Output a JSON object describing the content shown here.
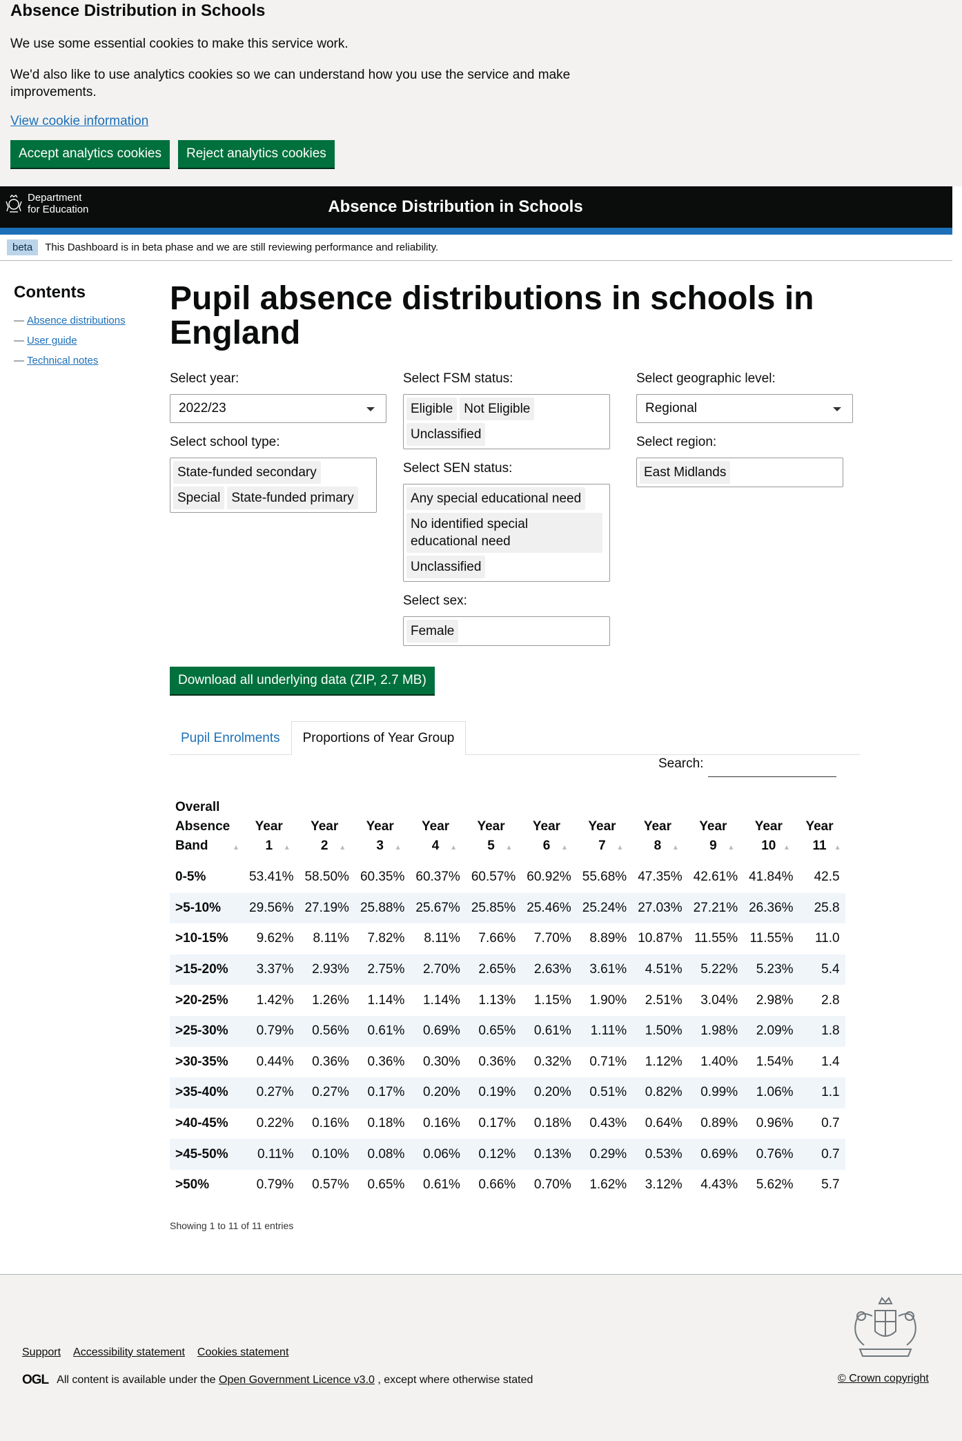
{
  "cookie_banner": {
    "title": "Absence Distribution in Schools",
    "p1": "We use some essential cookies to make this service work.",
    "p2": "We'd also like to use analytics cookies so we can understand how you use the service and make improvements.",
    "link": "View cookie information",
    "accept": "Accept analytics cookies",
    "reject": "Reject analytics cookies"
  },
  "header": {
    "logo_line1": "Department",
    "logo_line2": "for Education",
    "title": "Absence Distribution in Schools"
  },
  "beta": {
    "tag": "beta",
    "text": "This Dashboard is in beta phase and we are still reviewing performance and reliability."
  },
  "contents": {
    "title": "Contents",
    "items": [
      "Absence distributions",
      "User guide",
      "Technical notes"
    ]
  },
  "page_title": "Pupil absence distributions in schools in England",
  "filters": {
    "year_label": "Select year:",
    "year_value": "2022/23",
    "school_type_label": "Select school type:",
    "school_types": [
      "State-funded secondary",
      "Special",
      "State-funded primary"
    ],
    "fsm_label": "Select FSM status:",
    "fsm": [
      "Eligible",
      "Not Eligible",
      "Unclassified"
    ],
    "sen_label": "Select SEN status:",
    "sen": [
      "Any special educational need",
      "No identified special educational need",
      "Unclassified"
    ],
    "sex_label": "Select sex:",
    "sex": [
      "Female"
    ],
    "geo_label": "Select geographic level:",
    "geo_value": "Regional",
    "region_label": "Select region:",
    "region": [
      "East Midlands"
    ]
  },
  "download_label": "Download all underlying data (ZIP, 2.7 MB)",
  "tabs": [
    "Pupil Enrolments",
    "Proportions of Year Group"
  ],
  "search_label": "Search:",
  "table": {
    "headers": [
      "Overall Absence Band",
      "Year 1",
      "Year 2",
      "Year 3",
      "Year 4",
      "Year 5",
      "Year 6",
      "Year 7",
      "Year 8",
      "Year 9",
      "Year 10",
      "Year 11"
    ],
    "rows": [
      [
        "0-5%",
        "53.41%",
        "58.50%",
        "60.35%",
        "60.37%",
        "60.57%",
        "60.92%",
        "55.68%",
        "47.35%",
        "42.61%",
        "41.84%",
        "42.5"
      ],
      [
        ">5-10%",
        "29.56%",
        "27.19%",
        "25.88%",
        "25.67%",
        "25.85%",
        "25.46%",
        "25.24%",
        "27.03%",
        "27.21%",
        "26.36%",
        "25.8"
      ],
      [
        ">10-15%",
        "9.62%",
        "8.11%",
        "7.82%",
        "8.11%",
        "7.66%",
        "7.70%",
        "8.89%",
        "10.87%",
        "11.55%",
        "11.55%",
        "11.0"
      ],
      [
        ">15-20%",
        "3.37%",
        "2.93%",
        "2.75%",
        "2.70%",
        "2.65%",
        "2.63%",
        "3.61%",
        "4.51%",
        "5.22%",
        "5.23%",
        "5.4"
      ],
      [
        ">20-25%",
        "1.42%",
        "1.26%",
        "1.14%",
        "1.14%",
        "1.13%",
        "1.15%",
        "1.90%",
        "2.51%",
        "3.04%",
        "2.98%",
        "2.8"
      ],
      [
        ">25-30%",
        "0.79%",
        "0.56%",
        "0.61%",
        "0.69%",
        "0.65%",
        "0.61%",
        "1.11%",
        "1.50%",
        "1.98%",
        "2.09%",
        "1.8"
      ],
      [
        ">30-35%",
        "0.44%",
        "0.36%",
        "0.36%",
        "0.30%",
        "0.36%",
        "0.32%",
        "0.71%",
        "1.12%",
        "1.40%",
        "1.54%",
        "1.4"
      ],
      [
        ">35-40%",
        "0.27%",
        "0.27%",
        "0.17%",
        "0.20%",
        "0.19%",
        "0.20%",
        "0.51%",
        "0.82%",
        "0.99%",
        "1.06%",
        "1.1"
      ],
      [
        ">40-45%",
        "0.22%",
        "0.16%",
        "0.18%",
        "0.16%",
        "0.17%",
        "0.18%",
        "0.43%",
        "0.64%",
        "0.89%",
        "0.96%",
        "0.7"
      ],
      [
        ">45-50%",
        "0.11%",
        "0.10%",
        "0.08%",
        "0.06%",
        "0.12%",
        "0.13%",
        "0.29%",
        "0.53%",
        "0.69%",
        "0.76%",
        "0.7"
      ],
      [
        ">50%",
        "0.79%",
        "0.57%",
        "0.65%",
        "0.61%",
        "0.66%",
        "0.70%",
        "1.62%",
        "3.12%",
        "4.43%",
        "5.62%",
        "5.7"
      ]
    ]
  },
  "showing": "Showing 1 to 11 of 11 entries",
  "footer": {
    "links": [
      "Support",
      "Accessibility statement",
      "Cookies statement"
    ],
    "ogl_logo": "OGL",
    "ogl_pre": "All content is available under the",
    "ogl_link": "Open Government Licence v3.0",
    "ogl_post": ", except where otherwise stated",
    "crown": "© Crown copyright"
  }
}
